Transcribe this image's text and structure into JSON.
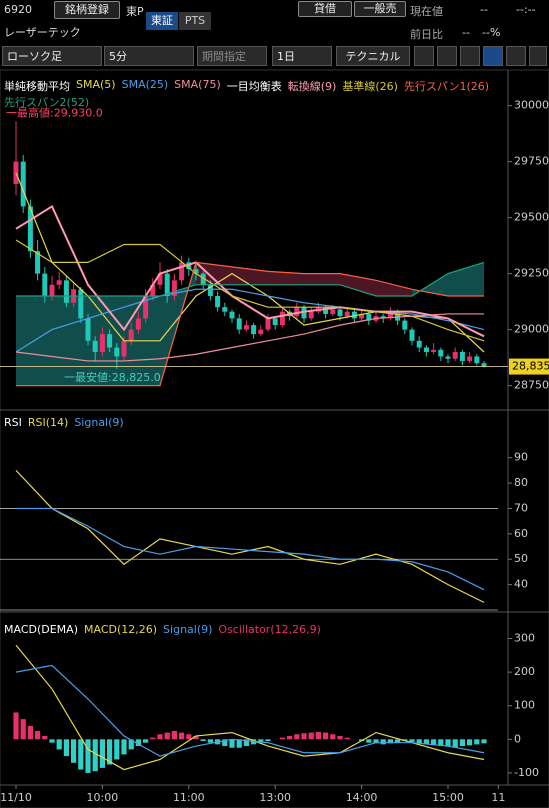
{
  "header": {
    "code": "6920",
    "register": "銘柄登録",
    "market": "東P",
    "tab_tse": "東証",
    "tab_pts": "PTS",
    "margin": "貸借",
    "general_sell": "一般売",
    "current_label": "現在値",
    "current_value": "--",
    "current_time": "--:--",
    "name": "レーザーテック",
    "change_label": "前日比",
    "change_value": "--",
    "change_pct": "--%"
  },
  "toolbar": {
    "chart_type": "ローソク足",
    "interval": "5分",
    "period": "期間指定",
    "range": "1日",
    "technical": "テクニカル"
  },
  "chart_data": {
    "type": "candlestick",
    "xticks": [
      {
        "value": 0,
        "label": "11/10"
      },
      {
        "value": 12,
        "label": "10:00"
      },
      {
        "value": 24,
        "label": "11:00"
      },
      {
        "value": 36,
        "label": "13:00"
      },
      {
        "value": 48,
        "label": "14:00"
      },
      {
        "value": 60,
        "label": "15:00"
      },
      {
        "value": 67,
        "label": "11"
      }
    ],
    "up_color": "#e8306a",
    "down_color": "#20c8b8",
    "ohlc": [
      [
        29650,
        29930,
        29600,
        29750
      ],
      [
        29750,
        29780,
        29520,
        29550
      ],
      [
        29550,
        29580,
        29320,
        29350
      ],
      [
        29350,
        29400,
        29220,
        29250
      ],
      [
        29250,
        29280,
        29120,
        29150
      ],
      [
        29150,
        29240,
        29130,
        29200
      ],
      [
        29200,
        29260,
        29180,
        29220
      ],
      [
        29220,
        29240,
        29100,
        29120
      ],
      [
        29120,
        29210,
        29100,
        29180
      ],
      [
        29180,
        29190,
        29030,
        29050
      ],
      [
        29050,
        29070,
        28930,
        28950
      ],
      [
        28950,
        28970,
        28860,
        28900
      ],
      [
        28900,
        29010,
        28880,
        28980
      ],
      [
        28980,
        29000,
        28900,
        28920
      ],
      [
        28920,
        28940,
        28825,
        28880
      ],
      [
        28880,
        28970,
        28860,
        28950
      ],
      [
        28950,
        29030,
        28930,
        29000
      ],
      [
        29000,
        29080,
        28980,
        29050
      ],
      [
        29050,
        29180,
        29030,
        29150
      ],
      [
        29150,
        29230,
        29130,
        29200
      ],
      [
        29200,
        29300,
        29180,
        29250
      ],
      [
        29250,
        29270,
        29120,
        29150
      ],
      [
        29150,
        29250,
        29130,
        29220
      ],
      [
        29220,
        29330,
        29200,
        29300
      ],
      [
        29300,
        29320,
        29240,
        29270
      ],
      [
        29270,
        29290,
        29220,
        29250
      ],
      [
        29250,
        29260,
        29180,
        29200
      ],
      [
        29200,
        29220,
        29130,
        29150
      ],
      [
        29150,
        29170,
        29080,
        29100
      ],
      [
        29100,
        29120,
        29060,
        29080
      ],
      [
        29080,
        29090,
        29030,
        29050
      ],
      [
        29050,
        29070,
        28980,
        29000
      ],
      [
        29000,
        29040,
        28990,
        29020
      ],
      [
        29020,
        29030,
        28960,
        28980
      ],
      [
        28980,
        29020,
        28970,
        29000
      ],
      [
        29000,
        29070,
        28990,
        29050
      ],
      [
        29050,
        29060,
        29000,
        29020
      ],
      [
        29020,
        29100,
        29010,
        29080
      ],
      [
        29080,
        29090,
        29040,
        29060
      ],
      [
        29060,
        29120,
        29050,
        29100
      ],
      [
        29100,
        29110,
        29030,
        29050
      ],
      [
        29050,
        29100,
        29040,
        29080
      ],
      [
        29080,
        29120,
        29070,
        29100
      ],
      [
        29100,
        29110,
        29050,
        29070
      ],
      [
        29070,
        29110,
        29060,
        29090
      ],
      [
        29090,
        29100,
        29040,
        29060
      ],
      [
        29060,
        29100,
        29050,
        29080
      ],
      [
        29080,
        29090,
        29030,
        29050
      ],
      [
        29050,
        29090,
        29040,
        29070
      ],
      [
        29070,
        29080,
        29020,
        29040
      ],
      [
        29040,
        29080,
        29030,
        29060
      ],
      [
        29060,
        29070,
        29030,
        29050
      ],
      [
        29050,
        29100,
        29040,
        29080
      ],
      [
        29080,
        29090,
        29020,
        29040
      ],
      [
        29040,
        29050,
        28980,
        29000
      ],
      [
        29000,
        29010,
        28930,
        28950
      ],
      [
        28950,
        28970,
        28900,
        28920
      ],
      [
        28920,
        28930,
        28880,
        28900
      ],
      [
        28900,
        28940,
        28890,
        28910
      ],
      [
        28910,
        28920,
        28860,
        28880
      ],
      [
        28880,
        28890,
        28850,
        28870
      ],
      [
        28870,
        28920,
        28860,
        28900
      ],
      [
        28900,
        28910,
        28840,
        28860
      ],
      [
        28860,
        28900,
        28850,
        28880
      ],
      [
        28880,
        28890,
        28840,
        28850
      ],
      [
        28850,
        28860,
        28830,
        28835
      ]
    ],
    "ylim": [
      28650,
      30150
    ],
    "yticks": [
      28750,
      29000,
      29250,
      29500,
      29750,
      30000
    ],
    "legend_groups": [
      "単純移動平均",
      "一目均衡表"
    ],
    "line_x": [
      0,
      5,
      10,
      15,
      20,
      25,
      30,
      35,
      40,
      45,
      50,
      55,
      60,
      65
    ],
    "series": [
      {
        "name": "SMA(5)",
        "color": "#e8d84a",
        "values": [
          29700,
          29300,
          29150,
          28950,
          28950,
          29150,
          29250,
          29150,
          29020,
          29050,
          29080,
          29060,
          29050,
          28900
        ]
      },
      {
        "name": "SMA(25)",
        "color": "#4a9fe8",
        "values": [
          28900,
          29000,
          29050,
          29100,
          29150,
          29180,
          29180,
          29150,
          29120,
          29100,
          29080,
          29070,
          29040,
          29000
        ]
      },
      {
        "name": "SMA(75)",
        "color": "#f08ca0",
        "values": [
          28900,
          28880,
          28860,
          28860,
          28870,
          28890,
          28920,
          28950,
          28980,
          29020,
          29050,
          29060,
          29070,
          29070
        ]
      },
      {
        "name": "転換線(9)",
        "color": "#ff9ab0",
        "values": [
          29450,
          29550,
          29200,
          29000,
          29250,
          29300,
          29150,
          29050,
          29080,
          29100,
          29080,
          29080,
          29050,
          28970
        ]
      },
      {
        "name": "基準線(26)",
        "color": "#d4c830",
        "values": [
          29400,
          29300,
          29300,
          29380,
          29380,
          29250,
          29150,
          29100,
          29100,
          29100,
          29080,
          29060,
          29000,
          28950
        ]
      },
      {
        "name": "先行スパン1(26)",
        "color": "#ff6040",
        "values": [
          28750,
          28750,
          28750,
          28750,
          28750,
          29300,
          29280,
          29260,
          29250,
          29250,
          29220,
          29180,
          29150,
          29150
        ]
      },
      {
        "name": "先行スパン2(52)",
        "color": "#20a080",
        "values": [
          29150,
          29150,
          29150,
          29150,
          29150,
          29200,
          29200,
          29200,
          29200,
          29200,
          29150,
          29150,
          29250,
          29300
        ]
      }
    ],
    "cloud_colors": [
      "#5a1a2a",
      "#145a58"
    ],
    "last_price": 28835,
    "last_price_label": "28,835",
    "annotations": [
      {
        "text": "一最高値:29,930.0",
        "value": 29930,
        "color": "#ff4060"
      },
      {
        "text": "一最安値:28,825.0",
        "value": 28825,
        "color": "#40d0c0"
      }
    ],
    "rsi": {
      "title": "RSI",
      "ylim": [
        30,
        108
      ],
      "yticks": [
        40,
        50,
        60,
        70,
        80,
        90
      ],
      "ref_lines": [
        70,
        50,
        30
      ],
      "series": [
        {
          "name": "RSI(14)",
          "color": "#e8d84a",
          "values": [
            85,
            70,
            62,
            48,
            58,
            55,
            52,
            55,
            50,
            48,
            52,
            48,
            40,
            33
          ]
        },
        {
          "name": "Signal(9)",
          "color": "#4a9fe8",
          "values": [
            70,
            70,
            63,
            55,
            52,
            55,
            54,
            53,
            52,
            50,
            50,
            49,
            45,
            38
          ]
        }
      ]
    },
    "macd": {
      "title": "MACD(DEMA)",
      "ylim": [
        -130,
        370
      ],
      "yticks": [
        -100,
        0,
        100,
        200,
        300
      ],
      "series": [
        {
          "name": "MACD(12,26)",
          "color": "#e8d84a",
          "values": [
            280,
            150,
            -30,
            -90,
            -60,
            10,
            20,
            -20,
            -50,
            -40,
            20,
            -10,
            -40,
            -60
          ]
        },
        {
          "name": "Signal(9)",
          "color": "#4a9fe8",
          "values": [
            200,
            220,
            120,
            10,
            -50,
            -20,
            0,
            -10,
            -40,
            -40,
            -10,
            -10,
            -20,
            -40
          ]
        }
      ],
      "oscillator": {
        "name": "Oscillator(12,26,9)",
        "color": "#e8306a",
        "neg_color": "#30d0c8",
        "values": [
          80,
          60,
          40,
          25,
          10,
          -10,
          -30,
          -50,
          -70,
          -90,
          -100,
          -95,
          -85,
          -75,
          -60,
          -45,
          -30,
          -20,
          -10,
          5,
          15,
          20,
          25,
          20,
          15,
          10,
          -5,
          -10,
          -15,
          -20,
          -25,
          -25,
          -20,
          -15,
          -10,
          -5,
          0,
          5,
          10,
          15,
          18,
          20,
          22,
          20,
          15,
          10,
          5,
          0,
          -5,
          -10,
          -12,
          -15,
          -12,
          -10,
          -5,
          -8,
          -12,
          -15,
          -18,
          -20,
          -22,
          -25,
          -20,
          -18,
          -15,
          -12
        ]
      }
    }
  }
}
